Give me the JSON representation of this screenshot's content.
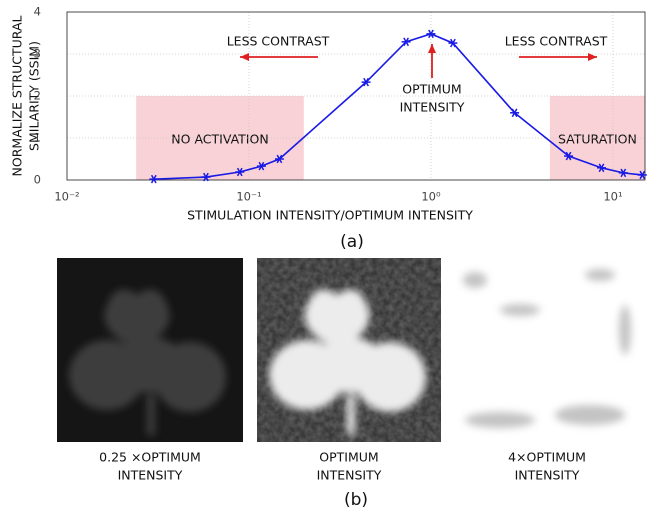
{
  "chart_data": {
    "type": "line",
    "xlabel": "STIMULATION INTENSITY/OPTIMUM INTENSITY",
    "ylabel": [
      "NORMALIZE STRUCTURAL",
      "SMILARITY (SSIM)"
    ],
    "xscale": "log",
    "xlim": [
      0.01,
      15
    ],
    "ylim": [
      0,
      4
    ],
    "xticks": [
      {
        "value": 0.01,
        "label": "10⁻²"
      },
      {
        "value": 0.1,
        "label": "10⁻¹"
      },
      {
        "value": 1,
        "label": "10⁰"
      },
      {
        "value": 10,
        "label": "10¹"
      }
    ],
    "yticks": [
      0,
      1,
      2,
      3,
      4
    ],
    "grid": true,
    "color": "#1a1ae6",
    "marker": "asterisk",
    "x": [
      0.03,
      0.058,
      0.089,
      0.117,
      0.147,
      0.44,
      0.73,
      1,
      1.32,
      2.88,
      5.7,
      8.65,
      11.4,
      14.5
    ],
    "values": [
      0.02,
      0.07,
      0.19,
      0.33,
      0.5,
      2.33,
      3.29,
      3.48,
      3.26,
      1.6,
      0.57,
      0.29,
      0.17,
      0.12
    ],
    "region_color": "#f8d2d6",
    "regions": [
      {
        "x": [
          0.024,
          0.2
        ],
        "y": [
          0,
          2
        ],
        "label": "NO ACTIVATION"
      },
      {
        "x": [
          4.5,
          15
        ],
        "y": [
          0,
          2
        ],
        "label": "SATURATION"
      }
    ],
    "annotations": [
      [
        "LESS CONTRAST"
      ],
      [
        "OPTIMUM",
        "INTENSITY"
      ],
      [
        "LESS CONTRAST"
      ]
    ],
    "arrow_color": "#e02020"
  },
  "figure": {
    "caption_a": "(a)",
    "caption_b": "(b)",
    "panels": [
      [
        "0.25 ×OPTIMUM",
        "INTENSITY"
      ],
      [
        "OPTIMUM",
        "INTENSITY"
      ],
      [
        "4×OPTIMUM",
        "INTENSITY"
      ]
    ]
  }
}
